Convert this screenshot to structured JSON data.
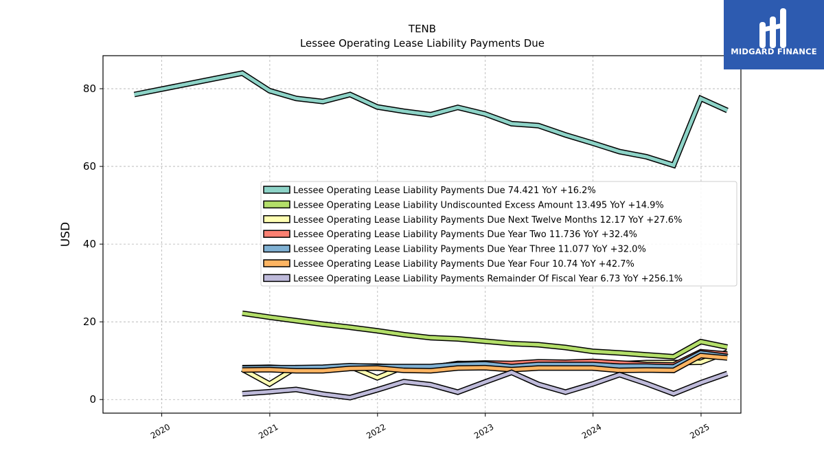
{
  "brand": {
    "name": "MIDGARD FINANCE",
    "color": "#2d5bb0"
  },
  "chart_data": {
    "type": "line",
    "title": "TENB",
    "subtitle": "Lessee Operating Lease Liability Payments Due",
    "ylabel": "USD",
    "xlabel": "",
    "x_ticks": [
      "2020",
      "2021",
      "2022",
      "2023",
      "2024",
      "2025"
    ],
    "y_ticks": [
      0,
      20,
      40,
      60,
      80
    ],
    "xlim": [
      "2019-06-16",
      "2025-05-16"
    ],
    "ylim": [
      -3.5,
      88.5
    ],
    "grid": true,
    "legend_position": "center-right",
    "series": [
      {
        "name": "Lessee Operating Lease Liability Payments Due",
        "legend": "Lessee Operating Lease Liability Payments Due  74.421 YoY +16.2%",
        "color": "#8dd3c7",
        "points": [
          [
            "2019-09-30",
            78.5
          ],
          [
            "2020-09-30",
            84.0
          ],
          [
            "2020-12-31",
            79.5
          ],
          [
            "2021-03-31",
            77.5
          ],
          [
            "2021-06-30",
            76.7
          ],
          [
            "2021-09-30",
            78.5
          ],
          [
            "2021-12-31",
            75.3
          ],
          [
            "2022-03-31",
            74.2
          ],
          [
            "2022-06-30",
            73.3
          ],
          [
            "2022-09-30",
            75.2
          ],
          [
            "2022-12-31",
            73.5
          ],
          [
            "2023-03-31",
            71.0
          ],
          [
            "2023-06-30",
            70.5
          ],
          [
            "2023-09-30",
            68.1
          ],
          [
            "2023-12-31",
            66.0
          ],
          [
            "2024-03-31",
            63.8
          ],
          [
            "2024-06-30",
            62.5
          ],
          [
            "2024-09-30",
            60.3
          ],
          [
            "2024-12-31",
            77.5
          ],
          [
            "2025-03-31",
            74.4
          ]
        ]
      },
      {
        "name": "Lessee Operating Lease Liability Undiscounted Excess Amount",
        "legend": "Lessee Operating Lease Liability Undiscounted Excess Amount  13.495 YoY +14.9%",
        "color": "#b3de69",
        "points": [
          [
            "2020-09-30",
            22.2
          ],
          [
            "2020-12-31",
            21.2
          ],
          [
            "2021-03-31",
            20.3
          ],
          [
            "2021-06-30",
            19.4
          ],
          [
            "2021-09-30",
            18.6
          ],
          [
            "2021-12-31",
            17.7
          ],
          [
            "2022-03-31",
            16.7
          ],
          [
            "2022-06-30",
            15.9
          ],
          [
            "2022-09-30",
            15.6
          ],
          [
            "2022-12-31",
            15.0
          ],
          [
            "2023-03-31",
            14.4
          ],
          [
            "2023-06-30",
            14.1
          ],
          [
            "2023-09-30",
            13.4
          ],
          [
            "2023-12-31",
            12.4
          ],
          [
            "2024-03-31",
            12.0
          ],
          [
            "2024-06-30",
            11.5
          ],
          [
            "2024-09-30",
            11.0
          ],
          [
            "2024-12-31",
            14.9
          ],
          [
            "2025-03-31",
            13.5
          ]
        ]
      },
      {
        "name": "Lessee Operating Lease Liability Payments Due Next Twelve Months",
        "legend": "Lessee Operating Lease Liability Payments Due Next Twelve Months  12.17 YoY +27.6%",
        "color": "#ffffb3",
        "points": [
          [
            "2020-09-30",
            7.8
          ],
          [
            "2020-12-31",
            4.0
          ],
          [
            "2021-03-31",
            8.2
          ],
          [
            "2021-06-30",
            8.1
          ],
          [
            "2021-09-30",
            8.5
          ],
          [
            "2021-12-31",
            5.6
          ],
          [
            "2022-03-31",
            8.4
          ],
          [
            "2022-06-30",
            8.2
          ],
          [
            "2022-09-30",
            9.3
          ],
          [
            "2022-12-31",
            9.2
          ],
          [
            "2023-03-31",
            9.0
          ],
          [
            "2023-06-30",
            9.3
          ],
          [
            "2023-09-30",
            9.4
          ],
          [
            "2023-12-31",
            9.6
          ],
          [
            "2024-03-31",
            9.2
          ],
          [
            "2024-06-30",
            9.5
          ],
          [
            "2024-09-30",
            9.5
          ],
          [
            "2024-12-31",
            9.6
          ],
          [
            "2025-03-31",
            12.2
          ]
        ]
      },
      {
        "name": "Lessee Operating Lease Liability Payments Due Year Two",
        "legend": "Lessee Operating Lease Liability Payments Due Year Two  11.736 YoY +32.4%",
        "color": "#fb8072",
        "points": [
          [
            "2020-09-30",
            8.2
          ],
          [
            "2020-12-31",
            8.3
          ],
          [
            "2021-03-31",
            8.0
          ],
          [
            "2021-06-30",
            8.0
          ],
          [
            "2021-09-30",
            8.6
          ],
          [
            "2021-12-31",
            8.6
          ],
          [
            "2022-03-31",
            8.3
          ],
          [
            "2022-06-30",
            8.3
          ],
          [
            "2022-09-30",
            9.2
          ],
          [
            "2022-12-31",
            9.4
          ],
          [
            "2023-03-31",
            9.3
          ],
          [
            "2023-06-30",
            9.7
          ],
          [
            "2023-09-30",
            9.6
          ],
          [
            "2023-12-31",
            9.8
          ],
          [
            "2024-03-31",
            9.4
          ],
          [
            "2024-06-30",
            9.0
          ],
          [
            "2024-09-30",
            8.9
          ],
          [
            "2024-12-31",
            12.3
          ],
          [
            "2025-03-31",
            11.7
          ]
        ]
      },
      {
        "name": "Lessee Operating Lease Liability Payments Due Year Three",
        "legend": "Lessee Operating Lease Liability Payments Due Year Three  11.077 YoY +32.0%",
        "color": "#80b1d3",
        "points": [
          [
            "2020-09-30",
            8.1
          ],
          [
            "2020-12-31",
            8.2
          ],
          [
            "2021-03-31",
            8.2
          ],
          [
            "2021-06-30",
            8.3
          ],
          [
            "2021-09-30",
            8.7
          ],
          [
            "2021-12-31",
            8.5
          ],
          [
            "2022-03-31",
            8.5
          ],
          [
            "2022-06-30",
            8.5
          ],
          [
            "2022-09-30",
            9.0
          ],
          [
            "2022-12-31",
            9.2
          ],
          [
            "2023-03-31",
            8.5
          ],
          [
            "2023-06-30",
            9.0
          ],
          [
            "2023-09-30",
            9.0
          ],
          [
            "2023-12-31",
            9.0
          ],
          [
            "2024-03-31",
            8.6
          ],
          [
            "2024-06-30",
            8.6
          ],
          [
            "2024-09-30",
            8.4
          ],
          [
            "2024-12-31",
            12.0
          ],
          [
            "2025-03-31",
            11.1
          ]
        ]
      },
      {
        "name": "Lessee Operating Lease Liability Payments Due Year Four",
        "legend": "Lessee Operating Lease Liability Payments Due Year Four  10.74 YoY +42.7%",
        "color": "#fdb462",
        "points": [
          [
            "2020-09-30",
            7.6
          ],
          [
            "2020-12-31",
            7.7
          ],
          [
            "2021-03-31",
            7.4
          ],
          [
            "2021-06-30",
            7.4
          ],
          [
            "2021-09-30",
            8.0
          ],
          [
            "2021-12-31",
            8.1
          ],
          [
            "2022-03-31",
            7.5
          ],
          [
            "2022-06-30",
            7.4
          ],
          [
            "2022-09-30",
            8.1
          ],
          [
            "2022-12-31",
            8.2
          ],
          [
            "2023-03-31",
            7.7
          ],
          [
            "2023-06-30",
            8.1
          ],
          [
            "2023-09-30",
            8.1
          ],
          [
            "2023-12-31",
            8.1
          ],
          [
            "2024-03-31",
            7.5
          ],
          [
            "2024-06-30",
            7.6
          ],
          [
            "2024-09-30",
            7.5
          ],
          [
            "2024-12-31",
            11.3
          ],
          [
            "2025-03-31",
            10.7
          ]
        ]
      },
      {
        "name": "Lessee Operating Lease Liability Payments Remainder Of Fiscal Year",
        "legend": "Lessee Operating Lease Liability Payments Remainder Of Fiscal Year  6.73 YoY +256.1%",
        "color": "#bebada",
        "points": [
          [
            "2020-09-30",
            1.5
          ],
          [
            "2020-12-31",
            2.0
          ],
          [
            "2021-03-31",
            2.6
          ],
          [
            "2021-06-30",
            1.4
          ],
          [
            "2021-09-30",
            0.5
          ],
          [
            "2021-12-31",
            2.5
          ],
          [
            "2022-03-31",
            4.6
          ],
          [
            "2022-06-30",
            3.8
          ],
          [
            "2022-09-30",
            1.9
          ],
          [
            "2022-12-31",
            4.5
          ],
          [
            "2023-03-31",
            7.0
          ],
          [
            "2023-06-30",
            3.9
          ],
          [
            "2023-09-30",
            1.9
          ],
          [
            "2023-12-31",
            4.0
          ],
          [
            "2024-03-31",
            6.4
          ],
          [
            "2024-06-30",
            4.1
          ],
          [
            "2024-09-30",
            1.5
          ],
          [
            "2024-12-31",
            4.3
          ],
          [
            "2025-03-31",
            6.7
          ]
        ]
      }
    ]
  }
}
